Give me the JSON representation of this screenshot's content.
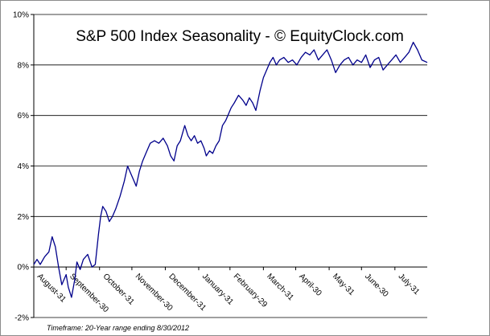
{
  "chart_data": {
    "type": "line",
    "title": "S&P 500 Index Seasonality - © EquityClock.com",
    "footer": "Timeframe: 20-Year range ending 8/30/2012",
    "y_ticks": [
      "10%",
      "8%",
      "6%",
      "4%",
      "2%",
      "0%",
      "-2%"
    ],
    "y_tick_values": [
      10,
      8,
      6,
      4,
      2,
      0,
      -2
    ],
    "ylim": [
      -2,
      10
    ],
    "x_ticks": [
      "August-31",
      "September-30",
      "October-31",
      "November-30",
      "December-31",
      "January-31",
      "February-29",
      "March-31",
      "April-30",
      "May-31",
      "June-30",
      "July-31"
    ],
    "x_tick_values": [
      0,
      30,
      61,
      91,
      122,
      153,
      182,
      213,
      243,
      274,
      304,
      335
    ],
    "xlim": [
      0,
      365
    ],
    "grid": "horizontal",
    "series": [
      {
        "color": "#00008b",
        "x": [
          0,
          3,
          6,
          10,
          14,
          17,
          20,
          23,
          26,
          30,
          32,
          35,
          38,
          40,
          43,
          46,
          50,
          54,
          57,
          60,
          62,
          64,
          67,
          70,
          73,
          76,
          80,
          84,
          87,
          89,
          92,
          95,
          98,
          101,
          104,
          108,
          112,
          116,
          120,
          124,
          127,
          130,
          133,
          136,
          140,
          143,
          146,
          149,
          152,
          155,
          158,
          160,
          163,
          166,
          169,
          172,
          175,
          178,
          180,
          183,
          186,
          190,
          194,
          197,
          200,
          203,
          206,
          210,
          213,
          216,
          219,
          222,
          225,
          228,
          232,
          236,
          240,
          244,
          248,
          252,
          256,
          260,
          264,
          268,
          272,
          276,
          280,
          284,
          288,
          292,
          296,
          300,
          304,
          308,
          312,
          316,
          320,
          324,
          328,
          332,
          336,
          340,
          344,
          348,
          352,
          356,
          360,
          365
        ],
        "values": [
          0.1,
          0.3,
          0.1,
          0.4,
          0.6,
          1.2,
          0.8,
          0.0,
          -0.7,
          -0.3,
          -0.8,
          -1.2,
          -0.5,
          0.2,
          -0.1,
          0.3,
          0.5,
          0.0,
          0.1,
          1.3,
          2.0,
          2.4,
          2.2,
          1.8,
          2.0,
          2.3,
          2.8,
          3.4,
          4.0,
          3.8,
          3.5,
          3.2,
          3.8,
          4.2,
          4.5,
          4.9,
          5.0,
          4.9,
          5.1,
          4.8,
          4.4,
          4.2,
          4.8,
          5.0,
          5.6,
          5.2,
          5.0,
          5.2,
          4.9,
          5.0,
          4.7,
          4.4,
          4.6,
          4.5,
          4.8,
          5.0,
          5.6,
          5.8,
          6.0,
          6.3,
          6.5,
          6.8,
          6.6,
          6.4,
          6.7,
          6.5,
          6.2,
          7.0,
          7.5,
          7.8,
          8.1,
          8.3,
          8.0,
          8.2,
          8.3,
          8.1,
          8.2,
          8.0,
          8.3,
          8.5,
          8.4,
          8.6,
          8.2,
          8.4,
          8.6,
          8.2,
          7.7,
          8.0,
          8.2,
          8.3,
          8.0,
          8.2,
          8.1,
          8.4,
          7.9,
          8.2,
          8.3,
          7.8,
          8.0,
          8.2,
          8.4,
          8.1,
          8.3,
          8.5,
          8.9,
          8.6,
          8.2,
          8.1
        ]
      }
    ]
  }
}
